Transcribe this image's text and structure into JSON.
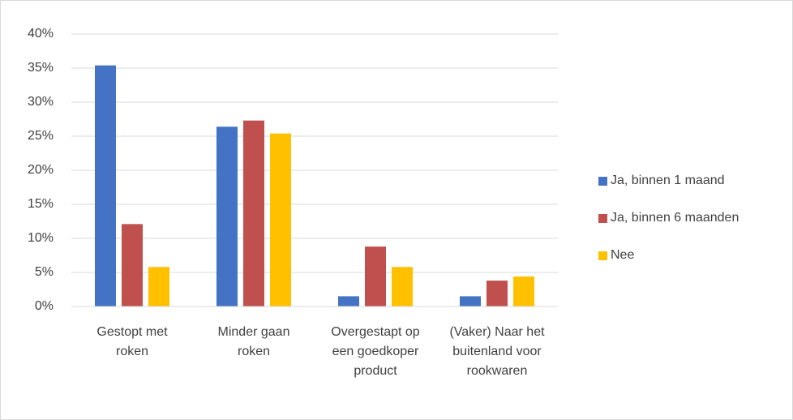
{
  "chart_data": {
    "type": "bar",
    "categories": [
      "Gestopt met roken",
      "Minder gaan roken",
      "Overgestapt op een goedkoper product",
      "(Vaker) Naar het buitenland voor rookwaren"
    ],
    "series": [
      {
        "name": "Ja, binnen 1 maand",
        "color": "#4472c4",
        "values": [
          35.4,
          26.4,
          1.5,
          1.5
        ]
      },
      {
        "name": "Ja, binnen 6 maanden",
        "color": "#c0504d",
        "values": [
          12.1,
          27.3,
          8.8,
          3.8
        ]
      },
      {
        "name": "Nee",
        "color": "#ffc000",
        "values": [
          5.8,
          25.4,
          5.8,
          4.4
        ]
      }
    ],
    "ylim": [
      0,
      40
    ],
    "yticks": [
      {
        "value": 0,
        "label": "0%"
      },
      {
        "value": 5,
        "label": "5%"
      },
      {
        "value": 10,
        "label": "10%"
      },
      {
        "value": 15,
        "label": "15%"
      },
      {
        "value": 20,
        "label": "20%"
      },
      {
        "value": 25,
        "label": "25%"
      },
      {
        "value": 30,
        "label": "30%"
      },
      {
        "value": 35,
        "label": "35%"
      },
      {
        "value": 40,
        "label": "40%"
      }
    ],
    "grid": true,
    "legend": "right"
  }
}
